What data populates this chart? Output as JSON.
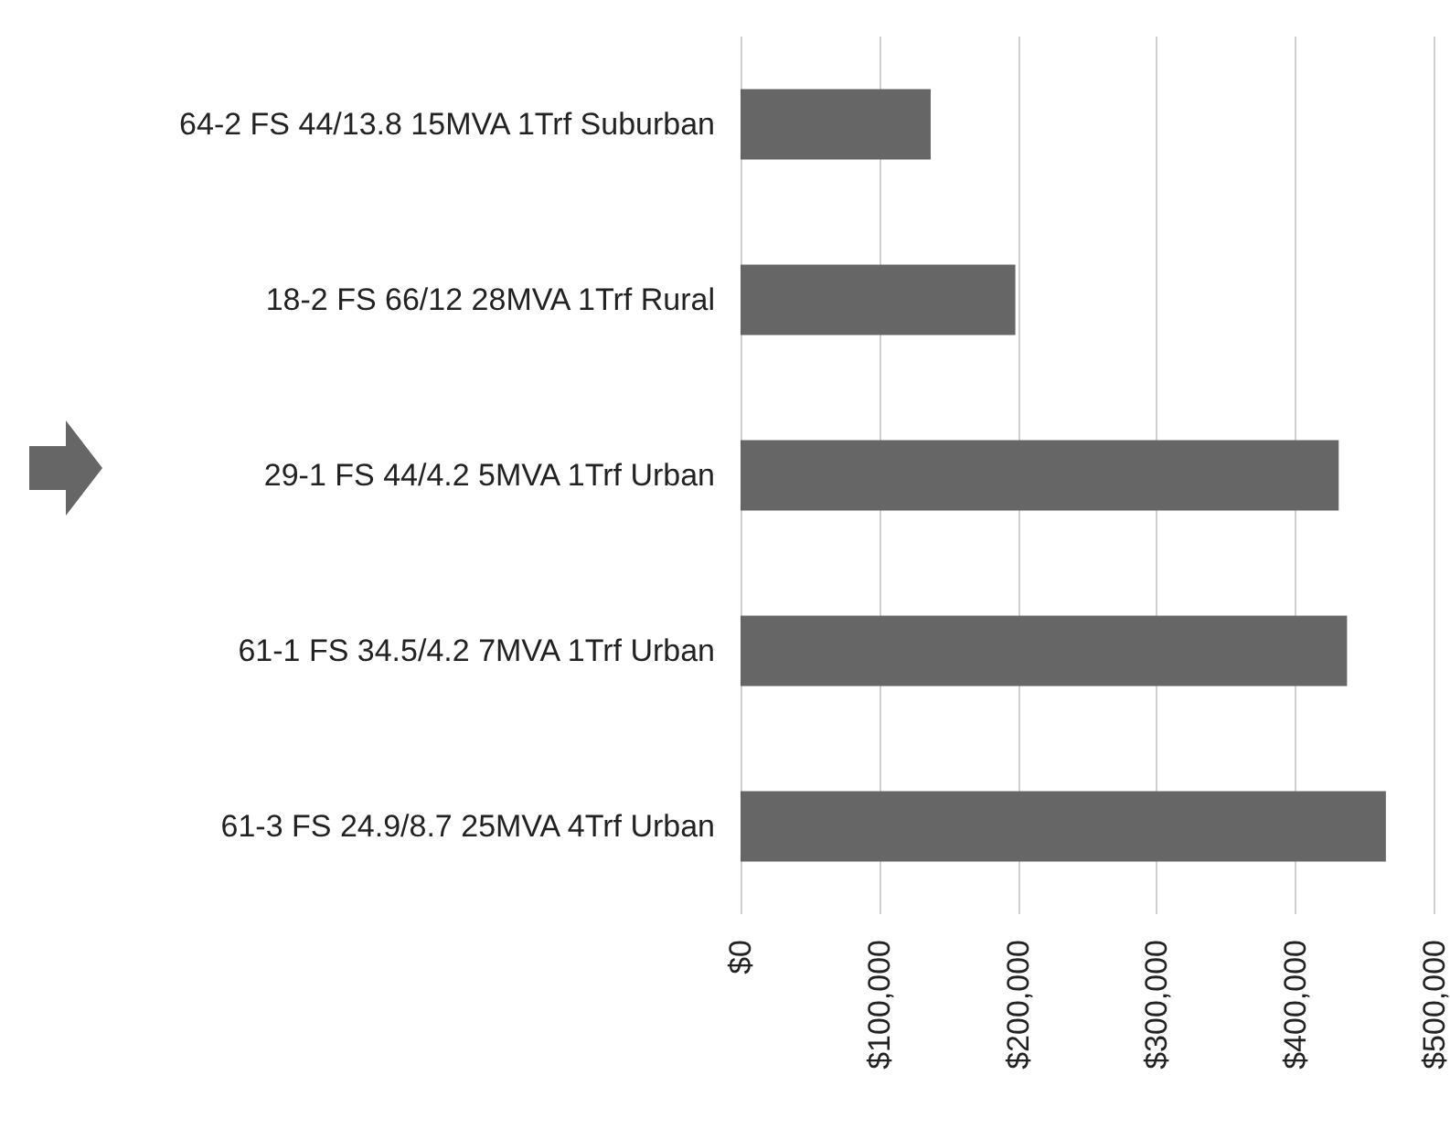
{
  "chart_data": {
    "type": "bar",
    "orientation": "horizontal",
    "categories": [
      "64-2 FS 44/13.8 15MVA 1Trf Suburban",
      "18-2 FS 66/12 28MVA 1Trf Rural",
      "29-1 FS 44/4.2 5MVA 1Trf Urban",
      "61-1 FS 34.5/4.2 7MVA 1Trf Urban",
      "61-3 FS 24.9/8.7 25MVA 4Trf Urban"
    ],
    "values": [
      137000,
      198000,
      431000,
      437000,
      465000
    ],
    "color": "#666666",
    "xlim": [
      0,
      500000
    ],
    "xticks": [
      {
        "value": 0,
        "label": "$0"
      },
      {
        "value": 100000,
        "label": "$100,000"
      },
      {
        "value": 200000,
        "label": "$200,000"
      },
      {
        "value": 300000,
        "label": "$300,000"
      },
      {
        "value": 400000,
        "label": "$400,000"
      },
      {
        "value": 500000,
        "label": "$500,000"
      }
    ],
    "grid": "x"
  }
}
